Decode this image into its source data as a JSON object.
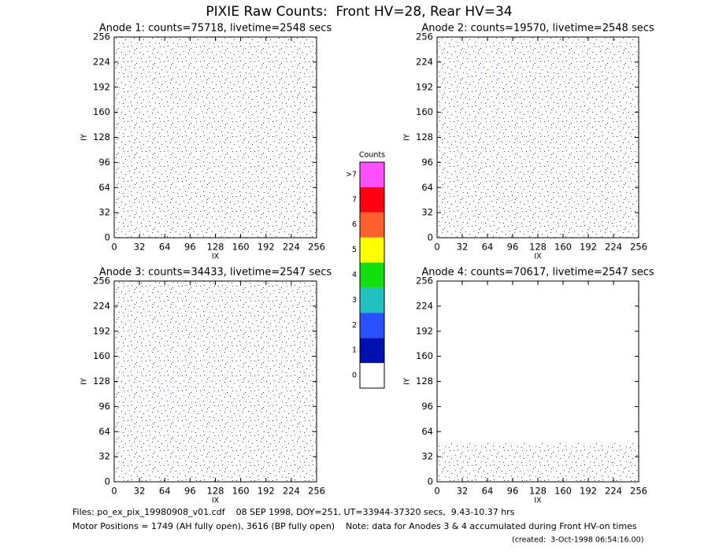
{
  "title": "PIXIE Raw Counts:  Front HV=28, Rear HV=34",
  "chart_data": [
    {
      "type": "heatmap",
      "title": "Anode 1: counts=75718, livetime=2548 secs",
      "xlabel": "IX",
      "ylabel": "IY",
      "xlim": [
        0,
        256
      ],
      "ylim": [
        0,
        256
      ],
      "xticks": [
        0,
        32,
        64,
        96,
        128,
        160,
        192,
        224,
        256
      ],
      "yticks": [
        0,
        32,
        64,
        96,
        128,
        160,
        192,
        224,
        256
      ]
    },
    {
      "type": "heatmap",
      "title": "Anode 2: counts=19570, livetime=2548 secs",
      "xlabel": "IX",
      "ylabel": "IY",
      "xlim": [
        0,
        256
      ],
      "ylim": [
        0,
        256
      ],
      "xticks": [
        0,
        32,
        64,
        96,
        128,
        160,
        192,
        224,
        256
      ],
      "yticks": [
        0,
        32,
        64,
        96,
        128,
        160,
        192,
        224,
        256
      ]
    },
    {
      "type": "heatmap",
      "title": "Anode 3: counts=34433, livetime=2547 secs",
      "xlabel": "IX",
      "ylabel": "IY",
      "xlim": [
        0,
        256
      ],
      "ylim": [
        0,
        256
      ],
      "xticks": [
        0,
        32,
        64,
        96,
        128,
        160,
        192,
        224,
        256
      ],
      "yticks": [
        0,
        32,
        64,
        96,
        128,
        160,
        192,
        224,
        256
      ]
    },
    {
      "type": "heatmap",
      "title": "Anode 4: counts=70617, livetime=2547 secs",
      "xlabel": "IX",
      "ylabel": "IY",
      "xlim": [
        0,
        256
      ],
      "ylim": [
        0,
        256
      ],
      "xticks": [
        0,
        32,
        64,
        96,
        128,
        160,
        192,
        224,
        256
      ],
      "yticks": [
        0,
        32,
        64,
        96,
        128,
        160,
        192,
        224,
        256
      ]
    }
  ],
  "colorbar": {
    "title": "Counts",
    "labels": [
      "0",
      "1",
      "2",
      "3",
      "4",
      "5",
      "6",
      "7",
      ">7"
    ],
    "colors": [
      "#ffffff",
      "#0010b0",
      "#2850ff",
      "#20c0c0",
      "#10e010",
      "#ffff00",
      "#ff6030",
      "#ff0010",
      "#ff50ff"
    ]
  },
  "footer": {
    "files": "Files: po_ex_pix_19980908_v01.cdf    08 SEP 1998, DOY=251, UT=33944-37320 secs,  9.43-10.37 hrs",
    "motor": "Motor Positions = 1749 (AH fully open), 3616 (BP fully open)    Note: data for Anodes 3 & 4 accumulated during Front HV-on times",
    "created": "(created:  3-Oct-1998 06:54:16.00)"
  }
}
